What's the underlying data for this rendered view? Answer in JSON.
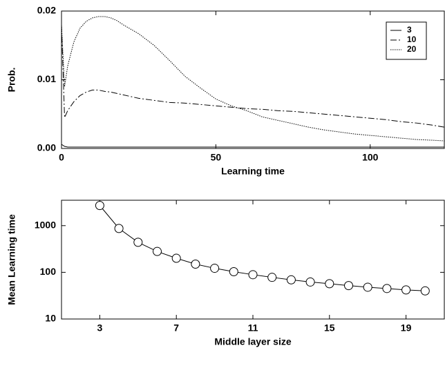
{
  "chart_data": [
    {
      "type": "line",
      "xlabel": "Learning time",
      "ylabel": "Prob.",
      "x": [
        0,
        1,
        2,
        4,
        6,
        8,
        10,
        12,
        14,
        16,
        18,
        20,
        25,
        30,
        35,
        40,
        45,
        50,
        55,
        60,
        65,
        70,
        75,
        80,
        85,
        90,
        95,
        100,
        105,
        110,
        115,
        120,
        124
      ],
      "series": [
        {
          "name": "3",
          "color": "#000000",
          "style": "solid",
          "values": [
            0.0006,
            0.0003,
            0.0002,
            0.0002,
            0.0002,
            0.0002,
            0.0002,
            0.0002,
            0.0002,
            0.0002,
            0.0002,
            0.0002,
            0.0002,
            0.0002,
            0.0002,
            0.0002,
            0.0002,
            0.0002,
            0.0002,
            0.0002,
            0.0002,
            0.0002,
            0.0002,
            0.0002,
            0.0002,
            0.0002,
            0.0002,
            0.0002,
            0.0002,
            0.0002,
            0.0002,
            0.0002,
            0.0002
          ]
        },
        {
          "name": "10",
          "color": "#000000",
          "style": "dashdot",
          "values": [
            0.018,
            0.0045,
            0.0055,
            0.0068,
            0.0077,
            0.0082,
            0.0085,
            0.0085,
            0.0083,
            0.0082,
            0.008,
            0.0078,
            0.0073,
            0.007,
            0.0067,
            0.0066,
            0.0064,
            0.0062,
            0.006,
            0.0058,
            0.0057,
            0.0055,
            0.0054,
            0.0052,
            0.005,
            0.0048,
            0.0046,
            0.0044,
            0.0042,
            0.0039,
            0.0037,
            0.0034,
            0.0031
          ]
        },
        {
          "name": "20",
          "color": "#000000",
          "style": "dotted",
          "values": [
            0.018,
            0.009,
            0.012,
            0.0155,
            0.0175,
            0.0185,
            0.019,
            0.0192,
            0.0192,
            0.019,
            0.0186,
            0.018,
            0.0167,
            0.015,
            0.0128,
            0.0105,
            0.0088,
            0.0072,
            0.0062,
            0.0055,
            0.0046,
            0.0041,
            0.0036,
            0.0031,
            0.0027,
            0.0024,
            0.0021,
            0.0019,
            0.0017,
            0.0015,
            0.0013,
            0.0012,
            0.0011
          ]
        }
      ],
      "xlim": [
        0,
        124
      ],
      "xticks": [
        0,
        50,
        100
      ],
      "ylim": [
        0,
        0.02
      ],
      "yticks": [
        {
          "value": 0,
          "label": "0.00"
        },
        0.01,
        0.02
      ],
      "legend": "upper right"
    },
    {
      "type": "line",
      "xlabel": "Middle layer size",
      "ylabel": "Mean Learning time",
      "x": [
        3,
        4,
        5,
        6,
        7,
        8,
        9,
        10,
        11,
        12,
        13,
        14,
        15,
        16,
        17,
        18,
        19,
        20
      ],
      "series": [
        {
          "color": "#000000",
          "style": "solid",
          "marker": "circle",
          "values": [
            2700,
            870,
            440,
            280,
            200,
            150,
            122,
            103,
            89,
            78,
            69,
            62,
            57,
            52,
            48,
            45,
            42,
            40
          ]
        }
      ],
      "xlim": [
        1,
        21
      ],
      "xticks": [
        3,
        7,
        11,
        15,
        19
      ],
      "ylim": [
        10,
        3500
      ],
      "yticks": [
        10,
        100,
        1000
      ],
      "ylog": true
    }
  ]
}
